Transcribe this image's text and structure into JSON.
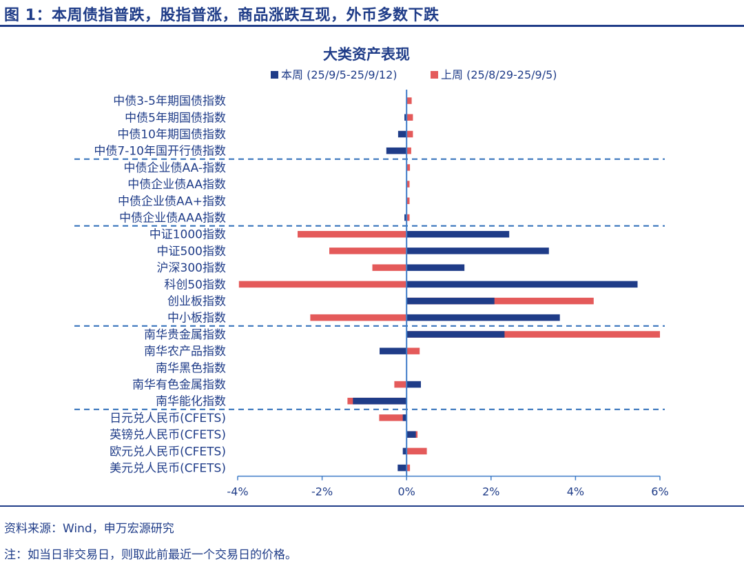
{
  "figure": {
    "title": "图 1：本周债指普跌，股指普涨，商品涨跌互现，外币多数下跌",
    "source": "资料来源：Wind，申万宏源研究",
    "note": "注：如当日非交易日，则取此前最近一个交易日的价格。"
  },
  "colors": {
    "this_week": "#1f3c88",
    "last_week": "#e45a5a",
    "text": "#1f3c88",
    "axis": "#3f7cc8",
    "divider": "#2b6cb8"
  },
  "chart_data": {
    "type": "bar",
    "orientation": "horizontal",
    "title": "大类资产表现",
    "legend_position": "top",
    "categories": [
      "中债3-5年期国债指数",
      "中债5年期国债指数",
      "中债10年期国债指数",
      "中债7-10年国开行债指数",
      "中债企业债AA-指数",
      "中债企业债AA指数",
      "中债企业债AA+指数",
      "中债企业债AAA指数",
      "中证1000指数",
      "中证500指数",
      "沪深300指数",
      "科创50指数",
      "创业板指数",
      "中小板指数",
      "南华贵金属指数",
      "南华农产品指数",
      "南华黑色指数",
      "南华有色金属指数",
      "南华能化指数",
      "日元兑人民币(CFETS)",
      "英镑兑人民币(CFETS)",
      "欧元兑人民币(CFETS)",
      "美元兑人民币(CFETS)"
    ],
    "series": [
      {
        "name": "本周 (25/9/5-25/9/12)",
        "color": "#1f3c88",
        "values": [
          0.0,
          -0.05,
          -0.2,
          -0.48,
          0.0,
          0.0,
          0.0,
          -0.05,
          2.43,
          3.37,
          1.37,
          5.47,
          2.08,
          3.63,
          2.32,
          -0.64,
          0.0,
          0.34,
          -1.27,
          -0.09,
          0.22,
          -0.09,
          -0.21
        ]
      },
      {
        "name": "上周 (25/8/29-25/9/5)",
        "color": "#e45a5a",
        "values": [
          0.12,
          0.15,
          0.15,
          0.11,
          0.08,
          0.07,
          0.07,
          0.07,
          -2.58,
          -1.83,
          -0.81,
          -3.97,
          4.43,
          -2.28,
          6.0,
          0.31,
          0.0,
          -0.29,
          -1.4,
          -0.65,
          0.26,
          0.48,
          0.08
        ]
      }
    ],
    "xlim": [
      -4,
      6
    ],
    "xticks": [
      "-4%",
      "-2%",
      "0%",
      "2%",
      "4%",
      "6%"
    ],
    "group_dividers_after": [
      3,
      7,
      13,
      18
    ],
    "grid": false
  }
}
